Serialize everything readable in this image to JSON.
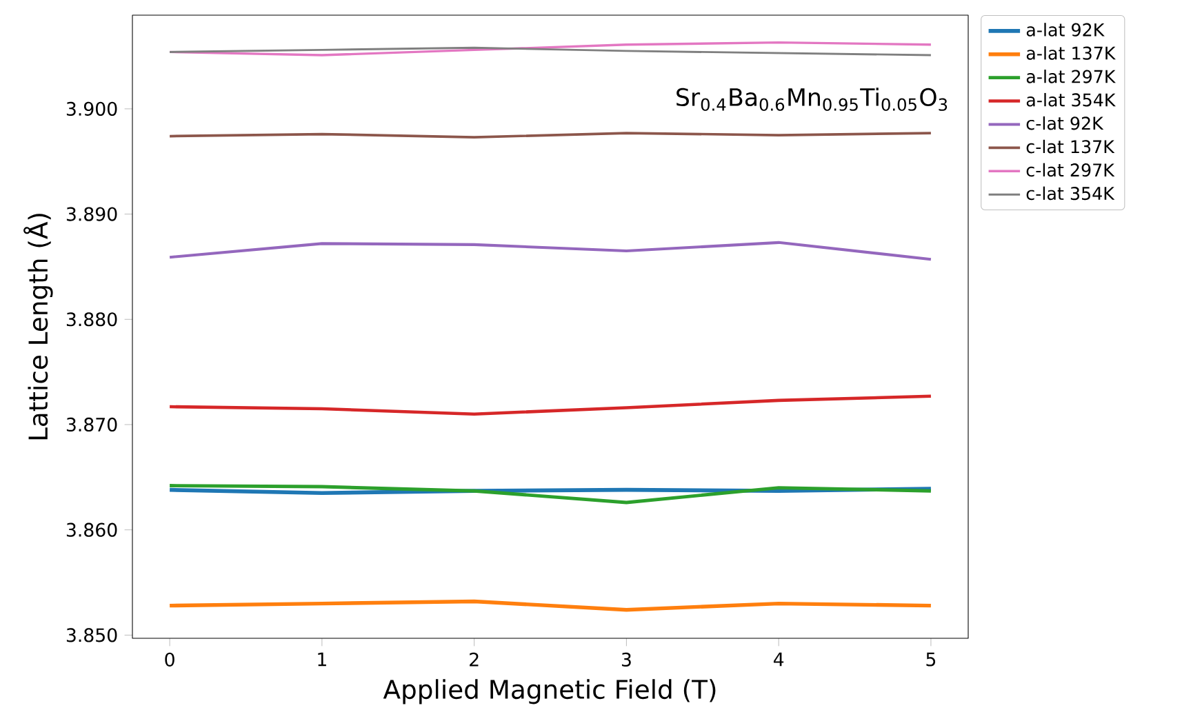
{
  "chart_data": {
    "type": "line",
    "xlabel": "Applied Magnetic Field (T)",
    "ylabel": "Lattice Length (Å)",
    "annotations": [
      "Sr$_{0.4}$Ba$_{0.6}$Mn$_{0.95}$Ti$_{0.05}$O$_{3}$"
    ],
    "x": [
      0,
      1,
      2,
      3,
      4,
      5
    ],
    "xlim": [
      -0.245,
      5.245
    ],
    "xticks": [
      0,
      1,
      2,
      3,
      4,
      5
    ],
    "ylim": [
      3.8497,
      3.9089
    ],
    "yticks": [
      {
        "value": 3.85,
        "label": "3.850"
      },
      {
        "value": 3.86,
        "label": "3.860"
      },
      {
        "value": 3.87,
        "label": "3.870"
      },
      {
        "value": 3.88,
        "label": "3.880"
      },
      {
        "value": 3.89,
        "label": "3.890"
      },
      {
        "value": 3.9,
        "label": "3.900"
      }
    ],
    "legend": "top right",
    "grid": false,
    "marker": "none",
    "line_style": "solid",
    "series": [
      {
        "name": "a-lat 92K",
        "color": "#1f77b4",
        "values": [
          3.8638,
          3.8635,
          3.8637,
          3.8638,
          3.8637,
          3.8639
        ]
      },
      {
        "name": "a-lat 137K",
        "color": "#ff7f0e",
        "values": [
          3.8528,
          3.853,
          3.8532,
          3.8524,
          3.853,
          3.8528
        ]
      },
      {
        "name": "a-lat 297K",
        "color": "#2ca02c",
        "values": [
          3.8642,
          3.8641,
          3.8637,
          3.8626,
          3.864,
          3.8637
        ]
      },
      {
        "name": "a-lat 354K",
        "color": "#d62728",
        "values": [
          3.8717,
          3.8715,
          3.871,
          3.8716,
          3.8723,
          3.8727
        ]
      },
      {
        "name": "c-lat 92K",
        "color": "#9467bd",
        "values": [
          3.8859,
          3.8872,
          3.8871,
          3.8865,
          3.8873,
          3.8857
        ]
      },
      {
        "name": "c-lat 137K",
        "color": "#8c564b",
        "values": [
          3.8974,
          3.8976,
          3.8973,
          3.8977,
          3.8975,
          3.8977
        ]
      },
      {
        "name": "c-lat 297K",
        "color": "#e377c2",
        "values": [
          3.9054,
          3.9051,
          3.9056,
          3.9061,
          3.9063,
          3.9061
        ]
      },
      {
        "name": "c-lat 354K",
        "color": "#7f7f7f",
        "values": [
          3.9054,
          3.9056,
          3.9058,
          3.9055,
          3.9053,
          3.9051
        ]
      }
    ]
  }
}
